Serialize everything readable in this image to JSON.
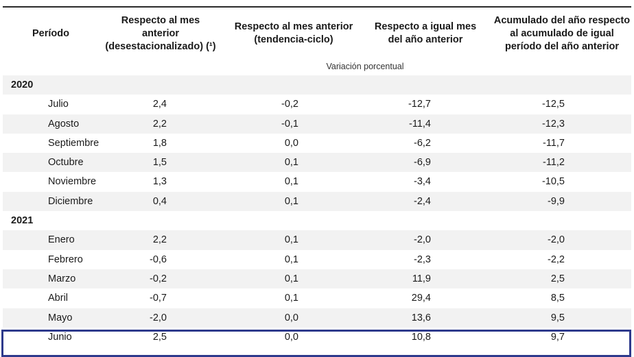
{
  "header": {
    "period": "Período",
    "col1": "Respecto al mes anterior (desestacionalizado) (¹)",
    "col2": "Respecto al mes anterior (tendencia-ciclo)",
    "col3": "Respecto a igual mes del año anterior",
    "col4": "Acumulado del año respecto al acumulado de igual período del año anterior"
  },
  "unit_label": "Variación porcentual",
  "rows": [
    {
      "kind": "year",
      "label": "2020"
    },
    {
      "kind": "month",
      "label": "Julio",
      "values": [
        "2,4",
        "-0,2",
        "-12,7",
        "-12,5"
      ]
    },
    {
      "kind": "month",
      "label": "Agosto",
      "values": [
        "2,2",
        "-0,1",
        "-11,4",
        "-12,3"
      ]
    },
    {
      "kind": "month",
      "label": "Septiembre",
      "values": [
        "1,8",
        "0,0",
        "-6,2",
        "-11,7"
      ]
    },
    {
      "kind": "month",
      "label": "Octubre",
      "values": [
        "1,5",
        "0,1",
        "-6,9",
        "-11,2"
      ]
    },
    {
      "kind": "month",
      "label": "Noviembre",
      "values": [
        "1,3",
        "0,1",
        "-3,4",
        "-10,5"
      ]
    },
    {
      "kind": "month",
      "label": "Diciembre",
      "values": [
        "0,4",
        "0,1",
        "-2,4",
        "-9,9"
      ]
    },
    {
      "kind": "year",
      "label": "2021"
    },
    {
      "kind": "month",
      "label": "Enero",
      "values": [
        "2,2",
        "0,1",
        "-2,0",
        "-2,0"
      ]
    },
    {
      "kind": "month",
      "label": "Febrero",
      "values": [
        "-0,6",
        "0,1",
        "-2,3",
        "-2,2"
      ]
    },
    {
      "kind": "month",
      "label": "Marzo",
      "values": [
        "-0,2",
        "0,1",
        "11,9",
        "2,5"
      ]
    },
    {
      "kind": "month",
      "label": "Abril",
      "values": [
        "-0,7",
        "0,1",
        "29,4",
        "8,5"
      ]
    },
    {
      "kind": "month",
      "label": "Mayo",
      "values": [
        "-2,0",
        "0,0",
        "13,6",
        "9,5"
      ]
    },
    {
      "kind": "month",
      "label": "Junio",
      "values": [
        "2,5",
        "0,0",
        "10,8",
        "9,7"
      ]
    }
  ],
  "colors": {
    "band": "#f2f2f2",
    "highlight": "#2e3a8c"
  }
}
